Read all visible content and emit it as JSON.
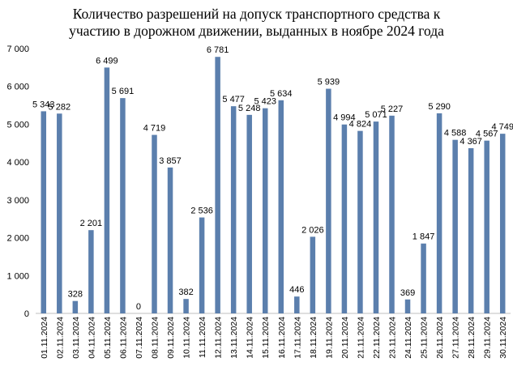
{
  "chart_data": {
    "type": "bar",
    "title_line1": "Количество разрешений на допуск транспортного средства к",
    "title_line2": "участию в дорожном движении, выданных в ноябре 2024 года",
    "categories": [
      "01.11.2024",
      "02.11.2024",
      "03.11.2024",
      "04.11.2024",
      "05.11.2024",
      "06.11.2024",
      "07.11.2024",
      "08.11.2024",
      "09.11.2024",
      "10.11.2024",
      "11.11.2024",
      "12.11.2024",
      "13.11.2024",
      "14.11.2024",
      "15.11.2024",
      "16.11.2024",
      "17.11.2024",
      "18.11.2024",
      "19.11.2024",
      "20.11.2024",
      "21.11.2024",
      "22.11.2024",
      "23.11.2024",
      "24.11.2024",
      "25.11.2024",
      "26.11.2024",
      "27.11.2024",
      "28.11.2024",
      "29.11.2024",
      "30.11.2024"
    ],
    "values": [
      5343,
      5282,
      328,
      2201,
      6499,
      5691,
      0,
      4719,
      3857,
      382,
      2536,
      6781,
      5477,
      5248,
      5423,
      5634,
      446,
      2026,
      5939,
      4994,
      4824,
      5071,
      5227,
      369,
      1847,
      5290,
      4588,
      4367,
      4567,
      4749
    ],
    "value_labels": [
      "5 343",
      "5 282",
      "328",
      "2 201",
      "6 499",
      "5 691",
      "0",
      "4 719",
      "3 857",
      "382",
      "2 536",
      "6 781",
      "5 477",
      "5 248",
      "5 423",
      "5 634",
      "446",
      "2 026",
      "5 939",
      "4 994",
      "4 824",
      "5 071",
      "5 227",
      "369",
      "1 847",
      "5 290",
      "4 588",
      "4 367",
      "4 567",
      "4 749"
    ],
    "y_ticks": [
      0,
      1000,
      2000,
      3000,
      4000,
      5000,
      6000,
      7000
    ],
    "y_tick_labels": [
      "0",
      "1 000",
      "2 000",
      "3 000",
      "4 000",
      "5 000",
      "6 000",
      "7 000"
    ],
    "ylim": [
      0,
      7000
    ],
    "xlabel": "",
    "ylabel": "",
    "grid": false,
    "legend": "none",
    "bar_color": "#5b7fad"
  }
}
